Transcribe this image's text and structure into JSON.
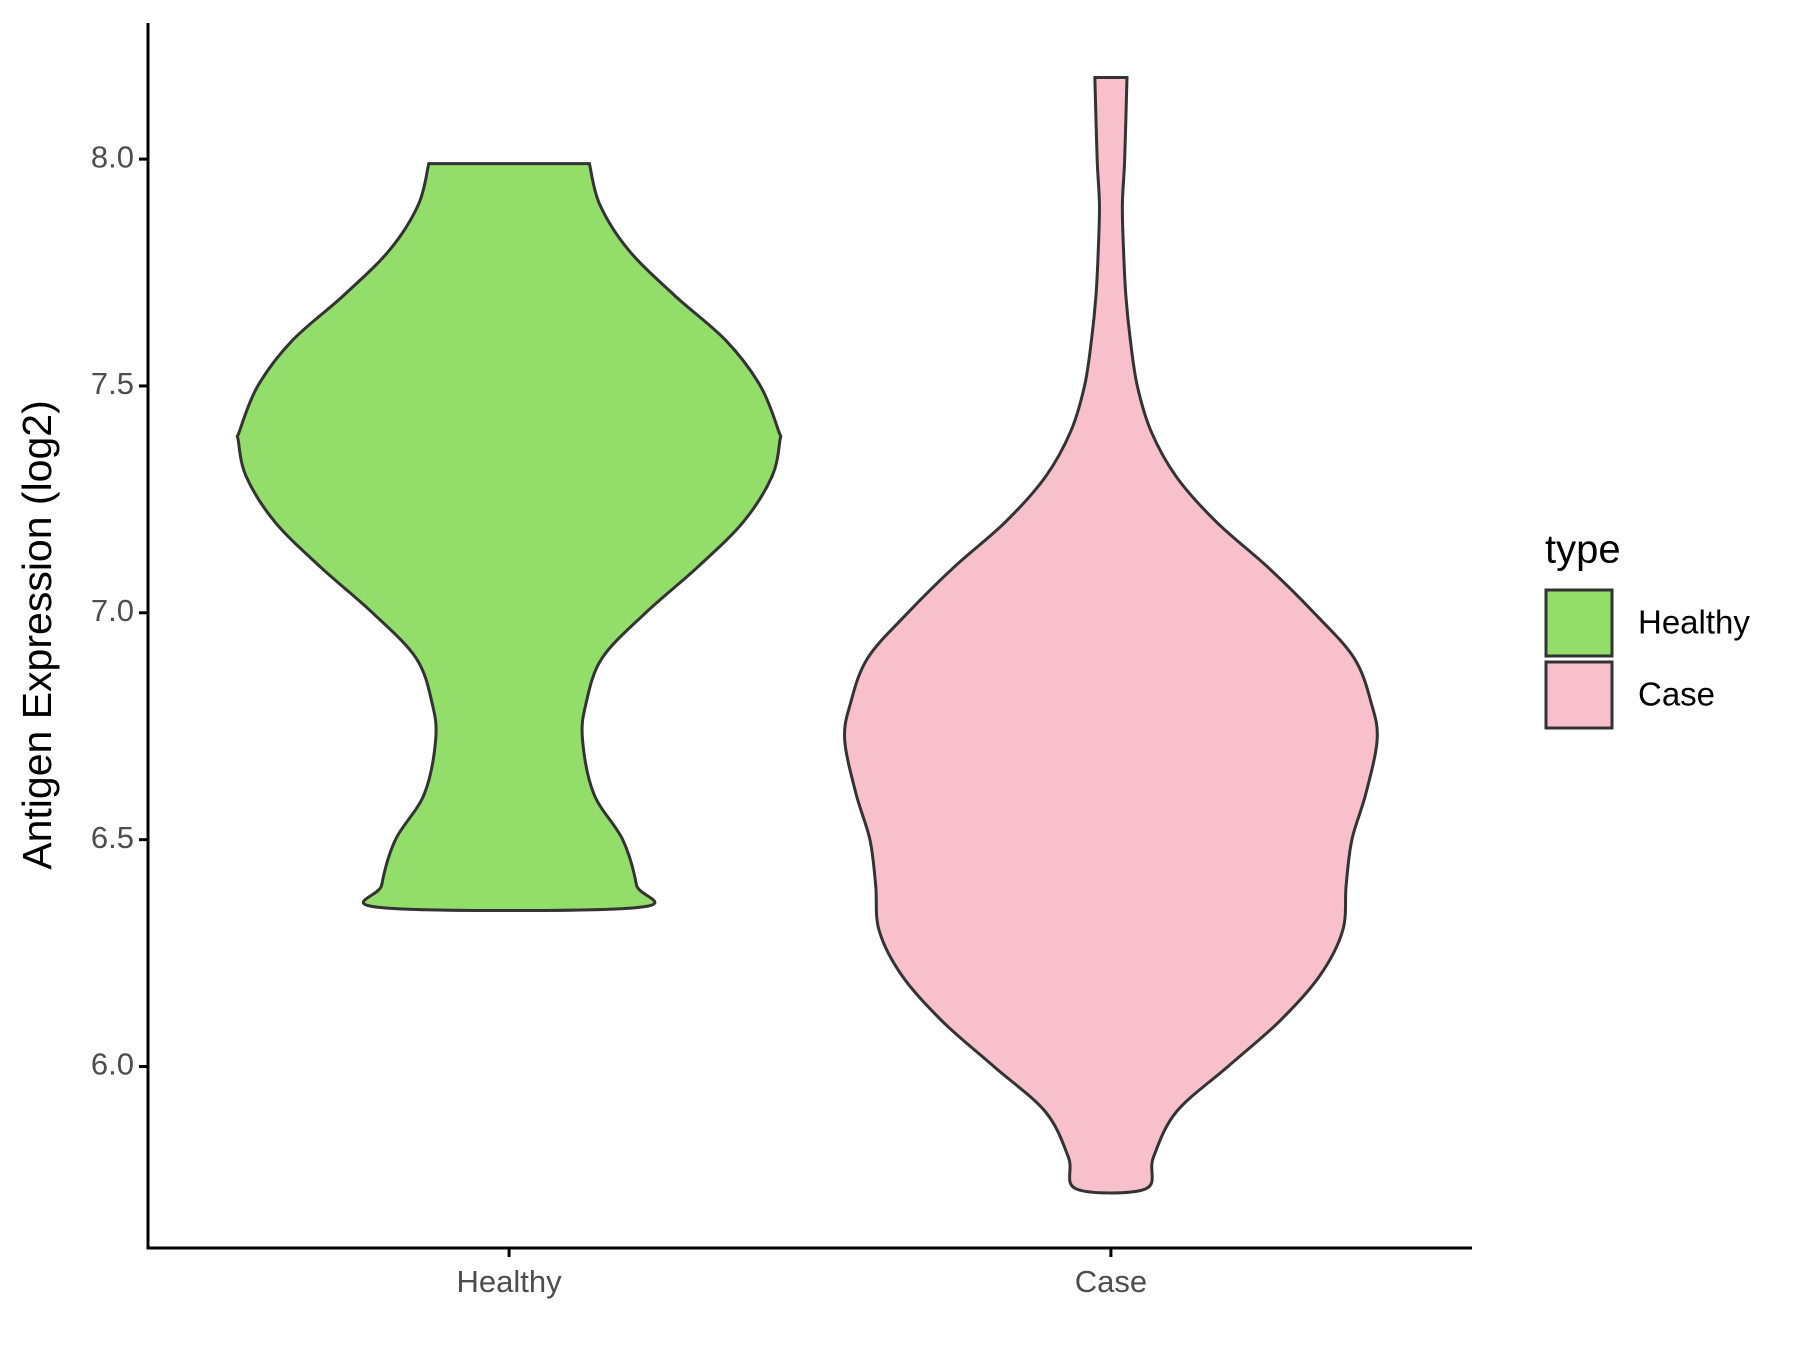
{
  "chart_data": {
    "type": "violin",
    "y_label": "Antigen Expression (log2)",
    "categories": [
      "Healthy",
      "Case"
    ],
    "legend_title": "type",
    "series": [
      {
        "name": "Healthy",
        "color": "#93dd6a",
        "y": [
          7.99,
          7.9,
          7.8,
          7.7,
          7.6,
          7.5,
          7.4,
          7.38,
          7.3,
          7.2,
          7.1,
          7.0,
          6.9,
          6.8,
          6.72,
          6.6,
          6.5,
          6.4,
          6.35
        ],
        "density": [
          70,
          79,
          104,
          144,
          189,
          219,
          235,
          236,
          229,
          204,
          164,
          119,
          81,
          67,
          64,
          74,
          99,
          111,
          110
        ]
      },
      {
        "name": "Case",
        "color": "#f7c0cb",
        "y": [
          8.18,
          8.0,
          7.9,
          7.8,
          7.7,
          7.6,
          7.5,
          7.4,
          7.3,
          7.2,
          7.1,
          7.0,
          6.9,
          6.8,
          6.72,
          6.6,
          6.5,
          6.4,
          6.3,
          6.2,
          6.1,
          6.0,
          5.9,
          5.8,
          5.73
        ],
        "density": [
          14,
          12,
          10,
          11,
          13,
          17,
          23,
          35,
          57,
          92,
          137,
          177,
          212,
          227,
          232,
          222,
          210,
          205,
          202,
          182,
          147,
          102,
          57,
          37,
          30
        ]
      }
    ],
    "ylim": [
      5.6,
      8.3
    ],
    "yticks": [
      {
        "value": 6,
        "label": "6.0"
      },
      {
        "value": 6.5,
        "label": "6.5"
      },
      {
        "value": 7,
        "label": "7.0"
      },
      {
        "value": 7.5,
        "label": "7.5"
      },
      {
        "value": 8,
        "label": "8.0"
      }
    ],
    "grid": false
  }
}
